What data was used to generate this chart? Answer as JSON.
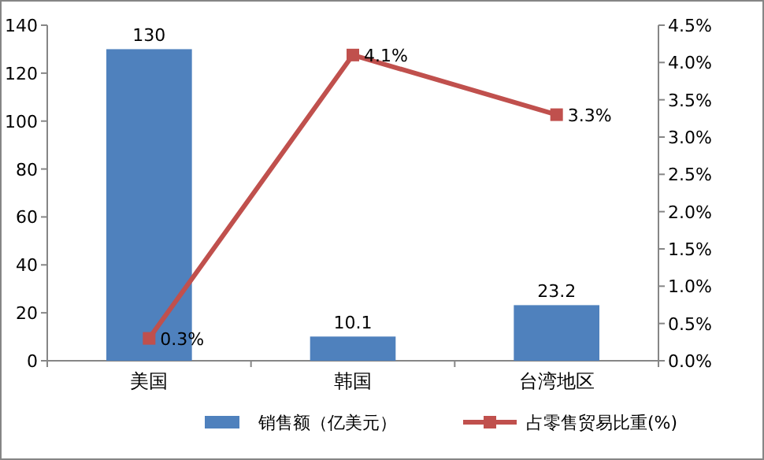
{
  "chart_data": {
    "type": "bar",
    "categories": [
      "美国",
      "韩国",
      "台湾地区"
    ],
    "series": [
      {
        "name": "销售额（亿美元）",
        "color": "#4f81bd",
        "values": [
          130,
          10.1,
          23.2
        ],
        "value_labels": [
          "130",
          "10.1",
          "23.2"
        ]
      },
      {
        "name": "占零售贸易比重(%)",
        "type": "line",
        "axis": "y2",
        "color": "#c0504d",
        "marker": "square",
        "values": [
          0.3,
          4.1,
          3.3
        ],
        "value_labels": [
          "0.3%",
          "4.1%",
          "3.3%"
        ]
      }
    ],
    "ylim": [
      0,
      140
    ],
    "yticks": [
      0,
      20,
      40,
      60,
      80,
      100,
      120,
      140
    ],
    "y2lim": [
      0,
      4.5
    ],
    "y2ticks": [
      {
        "value": 0,
        "label": "0.0%"
      },
      {
        "value": 0.5,
        "label": "0.5%"
      },
      {
        "value": 1,
        "label": "1.0%"
      },
      {
        "value": 1.5,
        "label": "1.5%"
      },
      {
        "value": 2,
        "label": "2.0%"
      },
      {
        "value": 2.5,
        "label": "2.5%"
      },
      {
        "value": 3,
        "label": "3.0%"
      },
      {
        "value": 3.5,
        "label": "3.5%"
      },
      {
        "value": 4,
        "label": "4.0%"
      },
      {
        "value": 4.5,
        "label": "4.5%"
      }
    ],
    "legend": "bottom"
  }
}
